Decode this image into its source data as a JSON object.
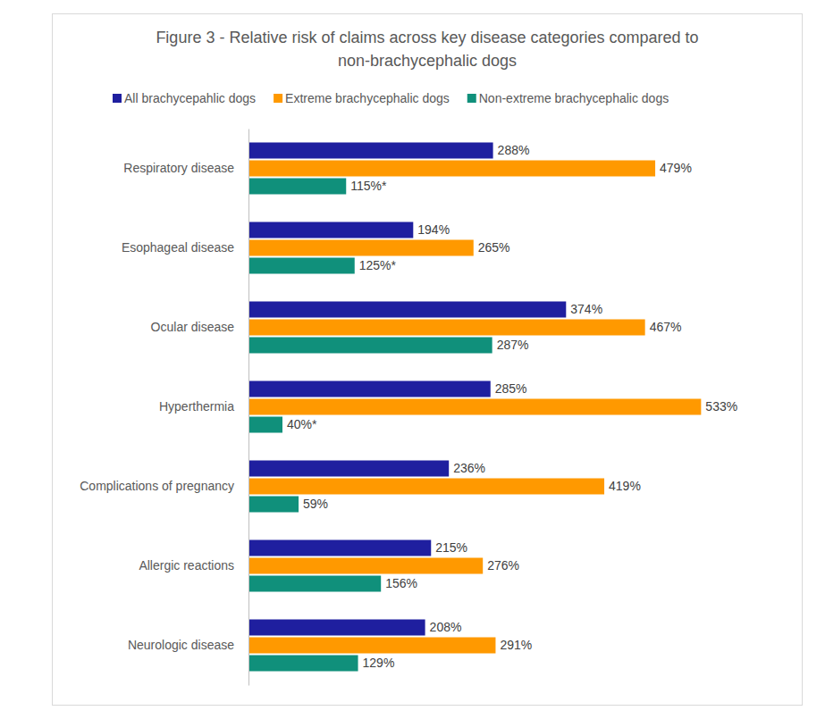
{
  "chart_data": {
    "type": "bar",
    "orientation": "horizontal",
    "title": "Figure 3 - Relative risk of claims across key disease categories compared to non-brachycephalic dogs",
    "categories": [
      "Respiratory disease",
      "Esophageal disease",
      "Ocular disease",
      "Hyperthermia",
      "Complications of pregnancy",
      "Allergic reactions",
      "Neurologic disease"
    ],
    "series": [
      {
        "name": "All brachycepahlic dogs",
        "color": "#1f1f9f",
        "values": [
          288,
          194,
          374,
          285,
          236,
          215,
          208
        ],
        "value_labels": [
          "288%",
          "194%",
          "374%",
          "285%",
          "236%",
          "215%",
          "208%"
        ]
      },
      {
        "name": "Extreme brachycephalic dogs",
        "color": "#ff9900",
        "values": [
          479,
          265,
          467,
          533,
          419,
          276,
          291
        ],
        "value_labels": [
          "479%",
          "265%",
          "467%",
          "533%",
          "419%",
          "276%",
          "291%"
        ]
      },
      {
        "name": "Non-extreme brachycephalic dogs",
        "color": "#10907b",
        "values": [
          115,
          125,
          287,
          40,
          59,
          156,
          129
        ],
        "value_labels": [
          "115%*",
          "125%*",
          "287%",
          "40%*",
          "59%",
          "156%",
          "129%"
        ]
      }
    ],
    "xlim": [
      0,
      540
    ],
    "data_labels": true,
    "tick_labels": "y",
    "grid": false,
    "legend": "top"
  }
}
